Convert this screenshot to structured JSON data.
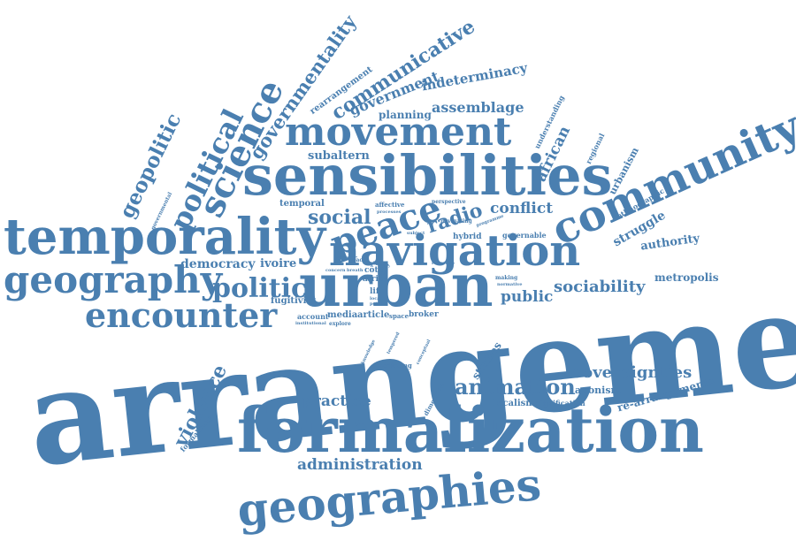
{
  "color": "#4a7fb0",
  "words": [
    {
      "text": "arrangement"
    },
    {
      "text": "formalization"
    },
    {
      "text": "urban"
    },
    {
      "text": "sensibilities"
    },
    {
      "text": "temporality"
    },
    {
      "text": "geographies"
    },
    {
      "text": "navigation"
    },
    {
      "text": "community"
    },
    {
      "text": "movement"
    },
    {
      "text": "geography"
    },
    {
      "text": "encounter"
    },
    {
      "text": "peace"
    },
    {
      "text": "science"
    },
    {
      "text": "politic"
    },
    {
      "text": "political"
    },
    {
      "text": "governmentality"
    },
    {
      "text": "communicative"
    },
    {
      "text": "geopolitic"
    },
    {
      "text": "animation"
    },
    {
      "text": "violence"
    },
    {
      "text": "sovereignties"
    },
    {
      "text": "sociability"
    },
    {
      "text": "administration"
    },
    {
      "text": "radio"
    },
    {
      "text": "social"
    },
    {
      "text": "government"
    },
    {
      "text": "conflict"
    },
    {
      "text": "practice"
    },
    {
      "text": "assemblage"
    },
    {
      "text": "indeterminacy"
    },
    {
      "text": "democracy"
    },
    {
      "text": "public"
    },
    {
      "text": "african"
    },
    {
      "text": "subaltern"
    },
    {
      "text": "planning"
    },
    {
      "text": "struggle"
    },
    {
      "text": "authority"
    },
    {
      "text": "metropolis"
    },
    {
      "text": "re-arrangements"
    },
    {
      "text": "agonism"
    },
    {
      "text": "studies"
    },
    {
      "text": "urbanism"
    },
    {
      "text": "ivoire"
    },
    {
      "text": "fugitivity"
    },
    {
      "text": "rearrangement"
    },
    {
      "text": "temporal"
    },
    {
      "text": "localism"
    },
    {
      "text": "signification"
    },
    {
      "text": "hybrid"
    },
    {
      "text": "governable"
    },
    {
      "text": "media"
    },
    {
      "text": "article"
    },
    {
      "text": "broker"
    },
    {
      "text": "understanding"
    },
    {
      "text": "ethnographic"
    },
    {
      "text": "regional"
    },
    {
      "text": "côte"
    },
    {
      "text": "life"
    },
    {
      "text": "account"
    },
    {
      "text": "space"
    },
    {
      "text": "africa"
    },
    {
      "text": "power"
    },
    {
      "text": "formalizing"
    },
    {
      "text": "dimension"
    },
    {
      "text": "mediating"
    },
    {
      "text": "affective"
    },
    {
      "text": "perspective"
    },
    {
      "text": "navigating"
    },
    {
      "text": "place"
    },
    {
      "text": "explore"
    },
    {
      "text": "institutional"
    },
    {
      "text": "making"
    },
    {
      "text": "normative"
    },
    {
      "text": "local"
    },
    {
      "text": "point"
    },
    {
      "text": "processes"
    },
    {
      "text": "knowledge"
    },
    {
      "text": "conceptual"
    },
    {
      "text": "subject"
    },
    {
      "text": "programme"
    },
    {
      "text": "governmental"
    },
    {
      "text": "concern"
    },
    {
      "text": "breath"
    },
    {
      "text": "reflective"
    },
    {
      "text": "city"
    },
    {
      "text": "tempered"
    }
  ]
}
